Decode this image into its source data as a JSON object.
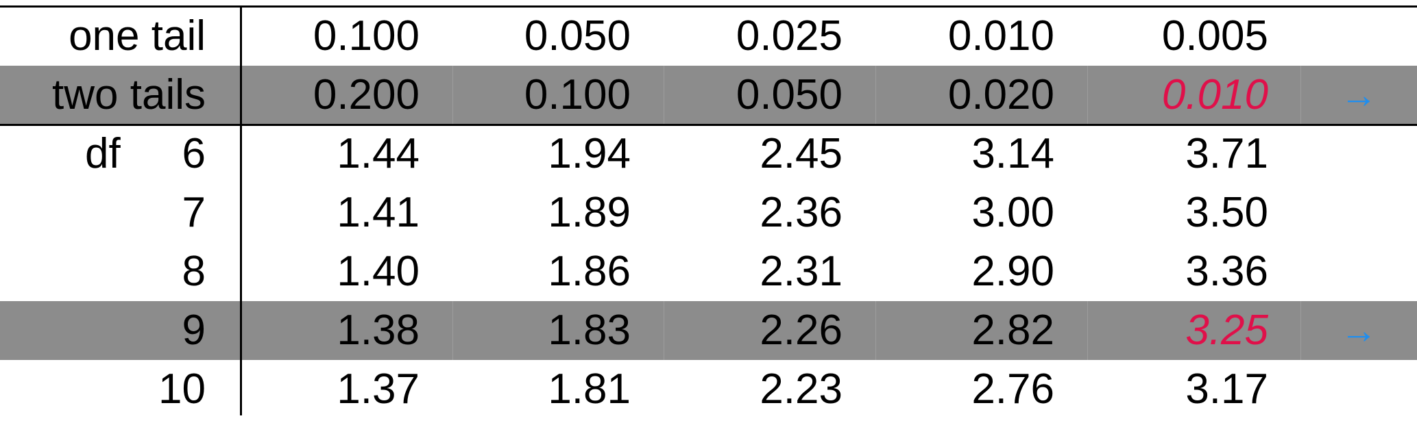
{
  "header": {
    "one_tail": {
      "label": "one tail",
      "values": [
        "0.100",
        "0.050",
        "0.025",
        "0.010",
        "0.005"
      ]
    },
    "two_tails": {
      "label": "two tails",
      "values": [
        "0.200",
        "0.100",
        "0.050",
        "0.020",
        "0.010"
      ],
      "arrow": "→"
    }
  },
  "df_label": "df",
  "rows": [
    {
      "df": "6",
      "values": [
        "1.44",
        "1.94",
        "2.45",
        "3.14",
        "3.71"
      ]
    },
    {
      "df": "7",
      "values": [
        "1.41",
        "1.89",
        "2.36",
        "3.00",
        "3.50"
      ]
    },
    {
      "df": "8",
      "values": [
        "1.40",
        "1.86",
        "2.31",
        "2.90",
        "3.36"
      ]
    },
    {
      "df": "9",
      "values": [
        "1.38",
        "1.83",
        "2.26",
        "2.82",
        "3.25"
      ],
      "arrow": "→"
    },
    {
      "df": "10",
      "values": [
        "1.37",
        "1.81",
        "2.23",
        "2.76",
        "3.17"
      ]
    }
  ],
  "colors": {
    "shade": "#8c8c8c",
    "highlight": "#e0104a",
    "arrow": "#1e8ef0"
  }
}
